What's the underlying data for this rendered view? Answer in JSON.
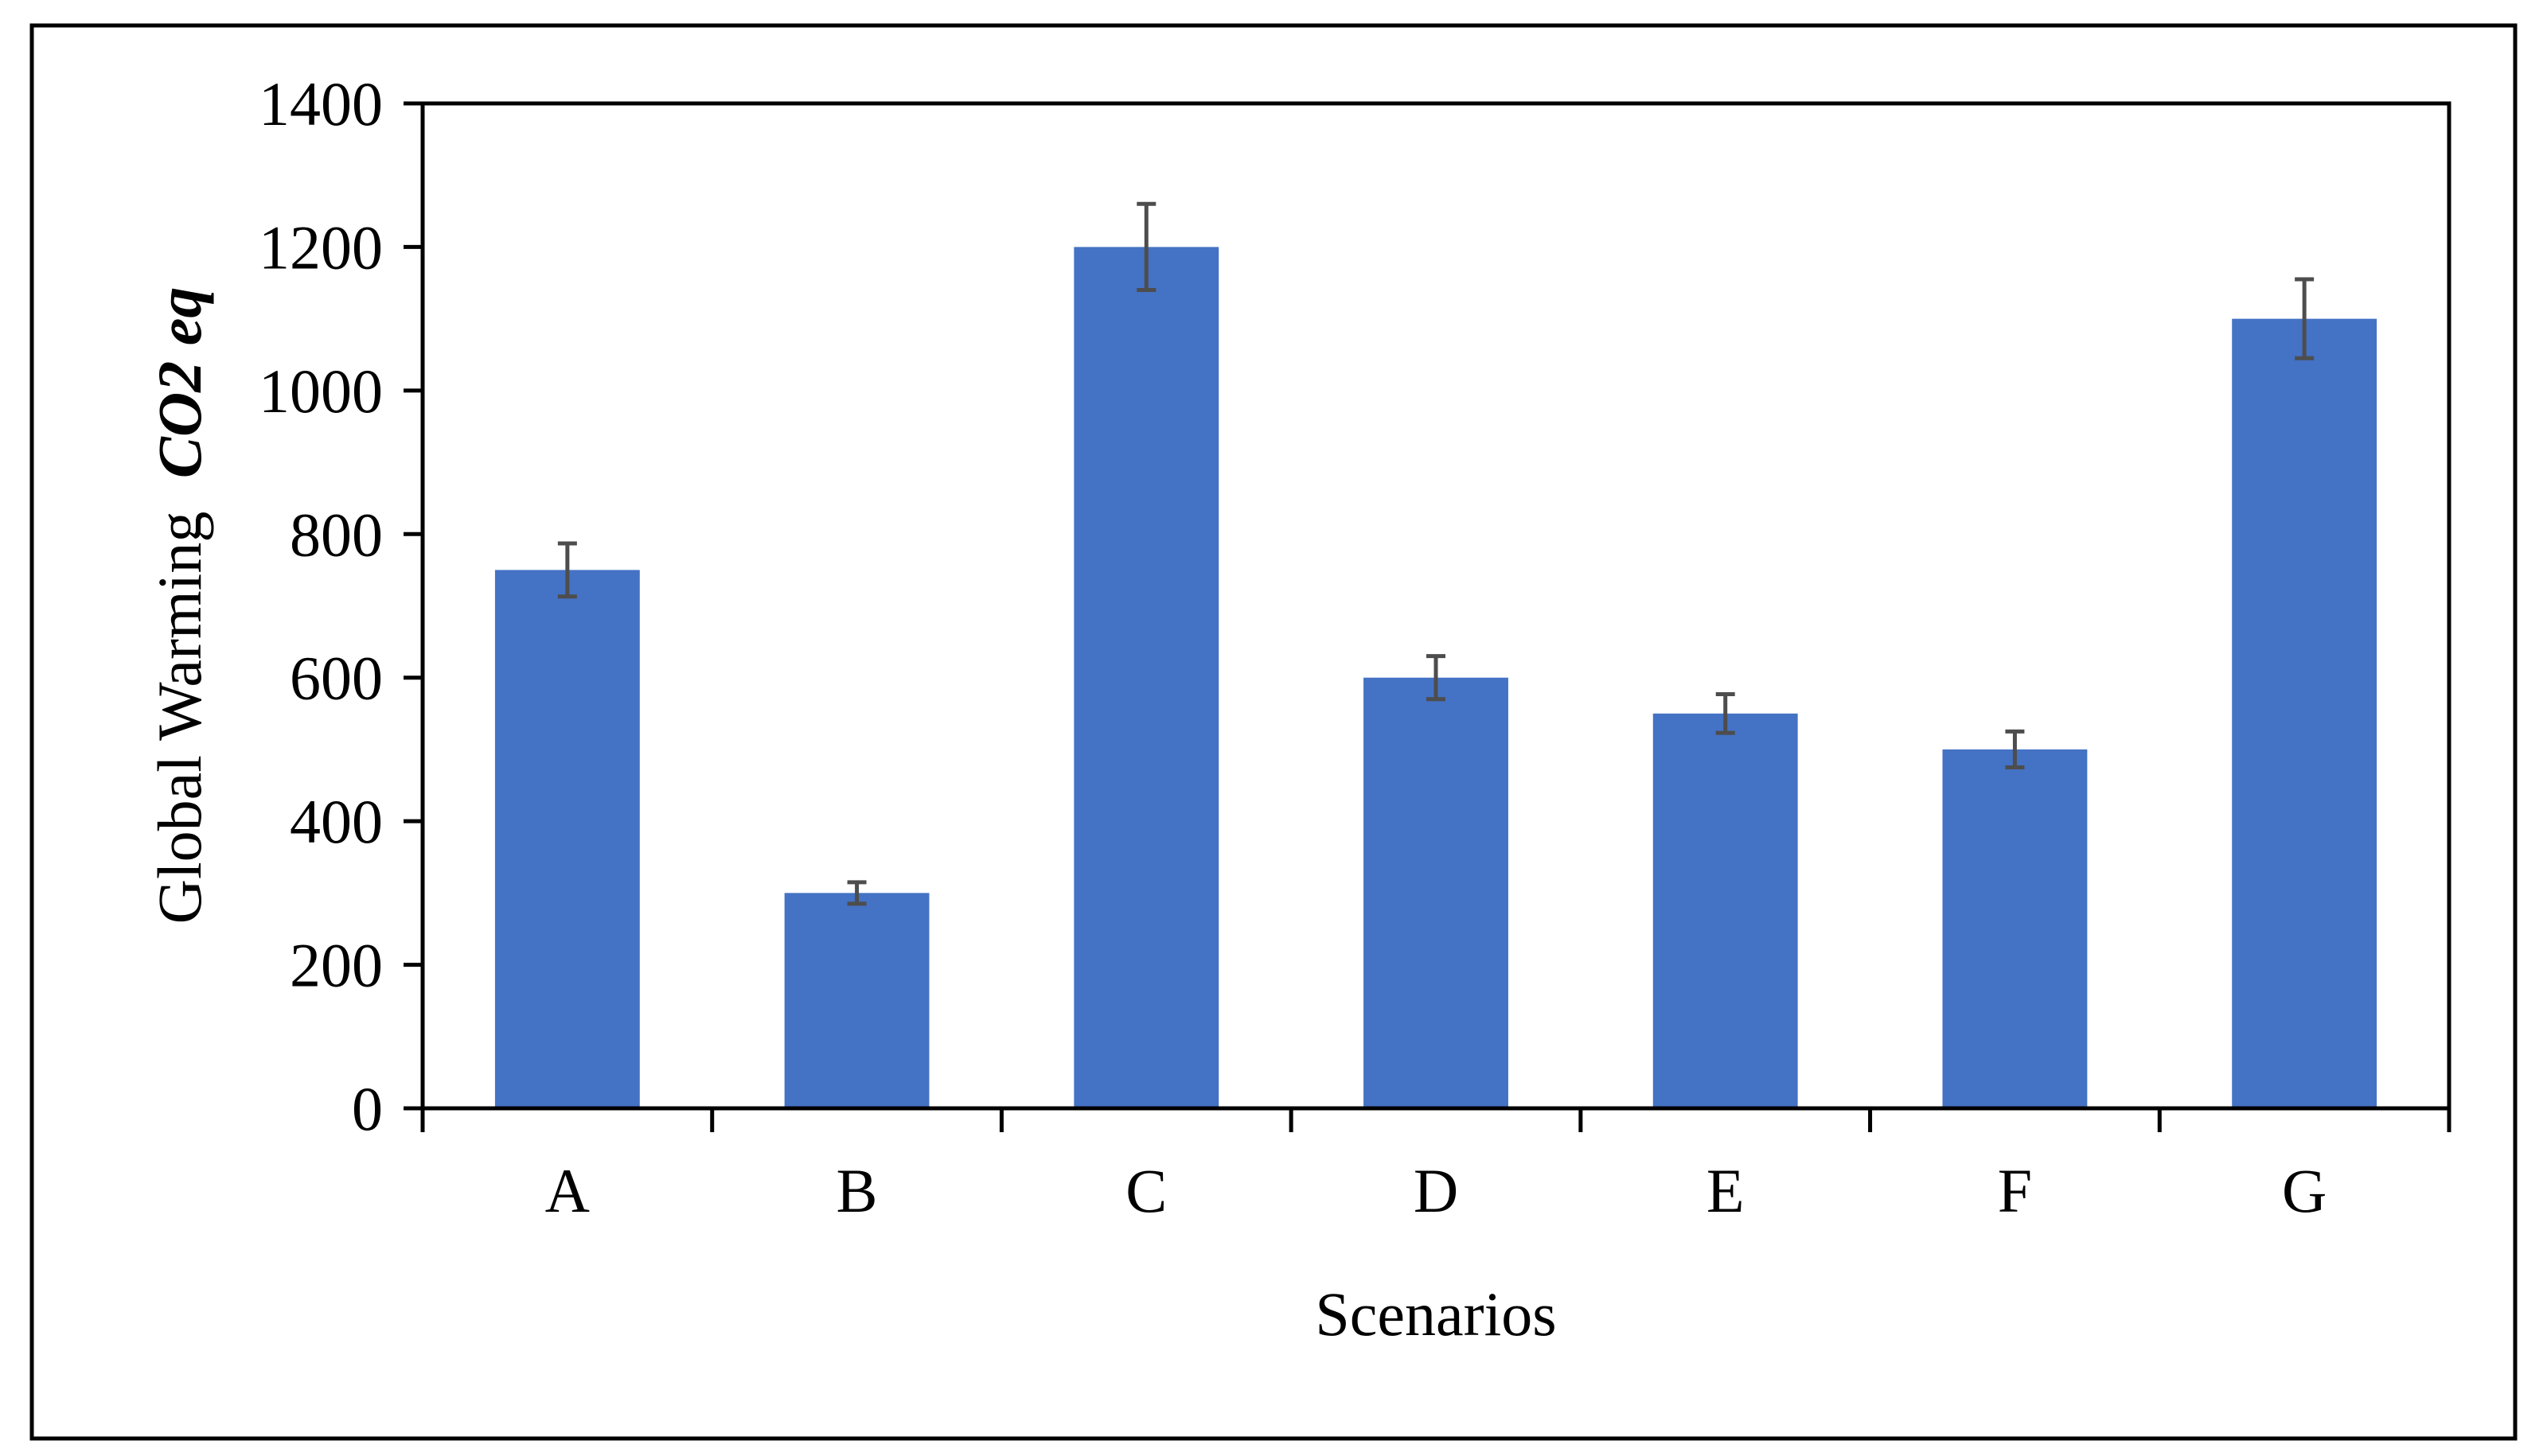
{
  "chart_data": {
    "type": "bar",
    "categories": [
      "A",
      "B",
      "C",
      "D",
      "E",
      "F",
      "G"
    ],
    "series": [
      {
        "values": [
          750,
          300,
          1200,
          600,
          550,
          500,
          1100
        ],
        "error": [
          37,
          15,
          60,
          30,
          27,
          25,
          55
        ]
      }
    ],
    "xlabel": "Scenarios",
    "ylabel": {
      "text": "Global Warming",
      "emphasis": "CO2 eq"
    },
    "ylim": [
      0,
      1400
    ],
    "yticks": [
      "0",
      "200",
      "400",
      "600",
      "800",
      "1000",
      "1200",
      "1400"
    ],
    "grid": false,
    "legend": "none",
    "bar_color": "#4472C4",
    "error_bar_color": "#4D4D4D",
    "frame_color": "#000000"
  }
}
